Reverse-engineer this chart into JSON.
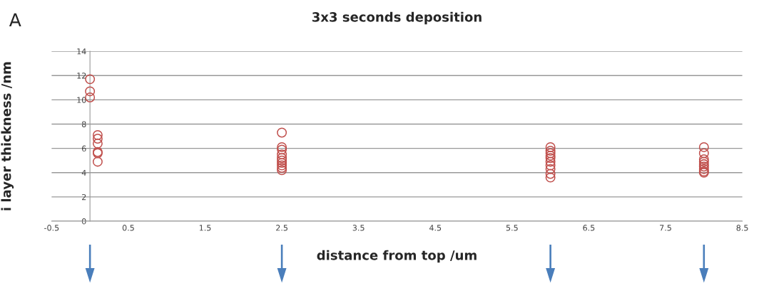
{
  "chart_data": {
    "type": "scatter",
    "title": "3x3 seconds deposition",
    "xlabel": "distance from top /um",
    "ylabel": "i layer thickness /nm",
    "annotations": [
      "A"
    ],
    "series": [
      {
        "color": "#c0504d",
        "x": [
          0,
          0,
          0,
          0.1,
          0.1,
          0.1,
          0.1,
          0.1,
          0.1,
          2.5,
          2.5,
          2.5,
          2.5,
          2.5,
          2.5,
          2.5,
          2.5,
          2.5,
          2.5,
          6,
          6,
          6,
          6,
          6,
          6,
          6,
          6,
          6,
          6,
          8,
          8,
          8,
          8,
          8,
          8,
          8,
          8,
          8
        ],
        "values": [
          11.7,
          10.7,
          10.2,
          7.1,
          6.8,
          6.4,
          5.7,
          5.6,
          4.9,
          7.3,
          6.1,
          5.9,
          5.5,
          5.2,
          5.0,
          4.8,
          4.6,
          4.4,
          4.2,
          6.1,
          5.8,
          5.6,
          5.4,
          5.2,
          4.9,
          4.6,
          4.3,
          3.9,
          3.6,
          6.1,
          5.6,
          5.1,
          4.9,
          4.7,
          4.5,
          4.3,
          4.1,
          4.0
        ]
      }
    ],
    "xlim": [
      -0.5,
      8.5
    ],
    "xticks": [
      -0.5,
      0.5,
      1.5,
      2.5,
      3.5,
      4.5,
      5.5,
      6.5,
      7.5,
      8.5
    ],
    "ylim": [
      0,
      14
    ],
    "yticks": [
      0,
      2,
      4,
      6,
      8,
      10,
      12,
      14
    ],
    "grid": "y",
    "marker": "circle",
    "legend": false
  }
}
